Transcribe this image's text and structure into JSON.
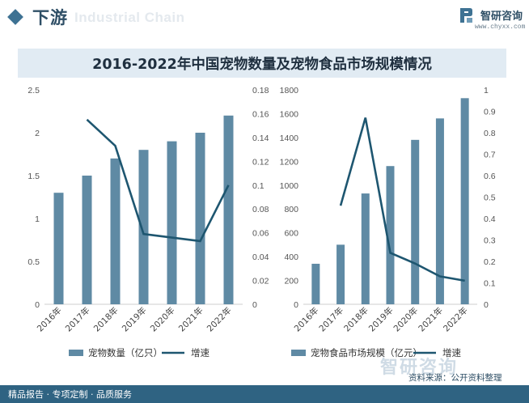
{
  "header": {
    "section_title": "下游",
    "bg_words": "Industrial Chain",
    "brand": "智研咨询",
    "url": "www.chyxx.com"
  },
  "title": "2016-2022年中国宠物数量及宠物食品市场规模情况",
  "footer": {
    "left": "精品报告 · 专项定制 · 品质服务",
    "source": "资料来源：公开资料整理",
    "watermark": "智研咨询"
  },
  "colors": {
    "bar": "#5f8aa4",
    "line": "#1e5670",
    "accent": "#3e7293",
    "footer_bg": "#2f6382"
  },
  "chart_data": [
    {
      "type": "bar",
      "categories": [
        "2016年",
        "2017年",
        "2018年",
        "2019年",
        "2020年",
        "2021年",
        "2022年"
      ],
      "series": [
        {
          "name": "宠物数量（亿只）",
          "type": "bar",
          "axis": "left",
          "values": [
            1.3,
            1.5,
            1.7,
            1.8,
            1.9,
            2.0,
            2.2
          ]
        },
        {
          "name": "增速",
          "type": "line",
          "axis": "right",
          "values": [
            null,
            0.155,
            0.133,
            0.059,
            0.056,
            0.053,
            0.1
          ]
        }
      ],
      "y_left": {
        "min": 0,
        "max": 2.5,
        "ticks": [
          "0",
          "0.5",
          "1",
          "1.5",
          "2",
          "2.5"
        ]
      },
      "y_right": {
        "min": 0,
        "max": 0.18,
        "ticks": [
          "0",
          "0.02",
          "0.04",
          "0.06",
          "0.08",
          "0.1",
          "0.12",
          "0.14",
          "0.16",
          "0.18"
        ]
      },
      "grid": false,
      "legend": "bottom"
    },
    {
      "type": "bar",
      "categories": [
        "2016年",
        "2017年",
        "2018年",
        "2019年",
        "2020年",
        "2021年",
        "2022年"
      ],
      "series": [
        {
          "name": "宠物食品市场规模（亿元）",
          "type": "bar",
          "axis": "left",
          "values": [
            340,
            500,
            930,
            1160,
            1380,
            1560,
            1730
          ]
        },
        {
          "name": "增速",
          "type": "line",
          "axis": "right",
          "values": [
            null,
            0.46,
            0.87,
            0.24,
            0.19,
            0.13,
            0.11
          ]
        }
      ],
      "y_left": {
        "min": 0,
        "max": 1800,
        "ticks": [
          "0",
          "200",
          "400",
          "600",
          "800",
          "1000",
          "1200",
          "1400",
          "1600",
          "1800"
        ]
      },
      "y_right": {
        "min": 0,
        "max": 1,
        "ticks": [
          "0",
          "0.1",
          "0.2",
          "0.3",
          "0.4",
          "0.5",
          "0.6",
          "0.7",
          "0.8",
          "0.9",
          "1"
        ]
      },
      "grid": false,
      "legend": "bottom"
    }
  ]
}
